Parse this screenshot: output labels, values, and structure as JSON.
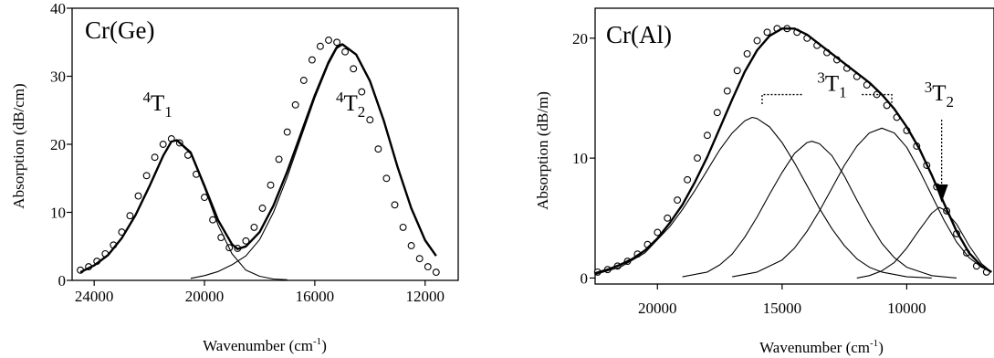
{
  "chart_data": [
    {
      "type": "line",
      "title": "",
      "panel_label": "Cr(Ge)",
      "xlabel": "Wavenumber (cm",
      "xlabel_sup": "-1",
      "xlabel_tail": ")",
      "ylabel": "Absorption (dB/cm)",
      "xlim": [
        24800,
        10800
      ],
      "ylim": [
        0,
        40
      ],
      "x_reversed": true,
      "xticks": [
        24000,
        20000,
        16000,
        12000
      ],
      "yticks": [
        0,
        10,
        20,
        30,
        40
      ],
      "grid": false,
      "annotations": [
        {
          "text": "4",
          "sub": "1",
          "base": "T",
          "x": 21700,
          "y": 25
        },
        {
          "text": "4",
          "sub": "2",
          "base": "T",
          "x": 14700,
          "y": 25
        }
      ],
      "series": [
        {
          "style": "markers",
          "x": [
            24500,
            24200,
            23900,
            23600,
            23300,
            23000,
            22700,
            22400,
            22100,
            21800,
            21500,
            21200,
            20900,
            20600,
            20300,
            20000,
            19700,
            19400,
            19100,
            18800,
            18500,
            18200,
            17900,
            17600,
            17300,
            17000,
            16700,
            16400,
            16100,
            15800,
            15500,
            15200,
            14900,
            14600,
            14300,
            14000,
            13700,
            13400,
            13100,
            12800,
            12500,
            12200,
            11900,
            11600
          ],
          "y": [
            1.5,
            2.0,
            2.8,
            3.9,
            5.2,
            7.1,
            9.5,
            12.4,
            15.4,
            18.1,
            20.0,
            20.8,
            20.2,
            18.4,
            15.6,
            12.2,
            8.9,
            6.3,
            4.8,
            4.7,
            5.8,
            7.8,
            10.6,
            14.0,
            17.8,
            21.8,
            25.8,
            29.4,
            32.4,
            34.4,
            35.3,
            35.0,
            33.6,
            31.1,
            27.7,
            23.6,
            19.3,
            15.0,
            11.1,
            7.8,
            5.1,
            3.2,
            2.0,
            1.2
          ]
        },
        {
          "style": "fit",
          "x": [
            24500,
            24000,
            23500,
            23000,
            22500,
            22000,
            21500,
            21200,
            21000,
            20500,
            20000,
            19500,
            19000,
            18800,
            18500,
            18000,
            17500,
            17000,
            16500,
            16000,
            15500,
            15200,
            15000,
            14500,
            14000,
            13500,
            13000,
            12500,
            12000,
            11600
          ],
          "y": [
            1.2,
            2.2,
            3.7,
            6.2,
            9.6,
            13.8,
            18.3,
            20.4,
            20.6,
            18.8,
            13.9,
            8.8,
            5.3,
            4.6,
            5.0,
            7.1,
            11.0,
            16.0,
            21.6,
            27.2,
            32.1,
            34.3,
            34.7,
            33.2,
            29.3,
            23.5,
            16.7,
            10.6,
            5.9,
            3.6
          ]
        },
        {
          "style": "component",
          "x": [
            24500,
            24000,
            23500,
            23000,
            22500,
            22000,
            21500,
            21200,
            21000,
            20500,
            20000,
            19500,
            19000,
            18500,
            18000,
            17500,
            17000
          ],
          "y": [
            1.2,
            2.2,
            3.7,
            6.2,
            9.6,
            13.8,
            18.3,
            20.4,
            20.5,
            18.6,
            13.6,
            8.1,
            3.9,
            1.5,
            0.6,
            0.2,
            0.1
          ]
        },
        {
          "style": "component",
          "x": [
            20500,
            20000,
            19500,
            19000,
            18500,
            18000,
            17500,
            17000,
            16500,
            16000,
            15500,
            15200,
            15000,
            14500,
            14000,
            13500,
            13000,
            12500,
            12000,
            11600
          ],
          "y": [
            0.3,
            0.7,
            1.3,
            2.3,
            3.6,
            6.0,
            10.0,
            15.2,
            21.0,
            26.8,
            31.8,
            34.1,
            34.6,
            33.1,
            29.2,
            23.4,
            16.6,
            10.5,
            5.8,
            3.6
          ]
        }
      ]
    },
    {
      "type": "line",
      "title": "",
      "panel_label": "Cr(Al)",
      "xlabel": "Wavenumber (cm",
      "xlabel_sup": "-1",
      "xlabel_tail": ")",
      "ylabel": "Absorption (dB/m)",
      "xlim": [
        22500,
        6500
      ],
      "ylim": [
        -0.5,
        22.5
      ],
      "x_reversed": true,
      "xticks": [
        20000,
        15000,
        10000
      ],
      "yticks": [
        0,
        10,
        20
      ],
      "grid": false,
      "annotations": [
        {
          "text": "3",
          "sub": "1",
          "base": "T",
          "x": 13000,
          "y": 15.6
        },
        {
          "text": "3",
          "sub": "2",
          "base": "T",
          "x": 8700,
          "y": 14.8
        }
      ],
      "series": [
        {
          "style": "markers",
          "x": [
            22400,
            22000,
            21600,
            21200,
            20800,
            20400,
            20000,
            19600,
            19200,
            18800,
            18400,
            18000,
            17600,
            17200,
            16800,
            16400,
            16000,
            15600,
            15200,
            14800,
            14400,
            14000,
            13600,
            13200,
            12800,
            12400,
            12000,
            11600,
            11200,
            10800,
            10400,
            10000,
            9600,
            9200,
            8800,
            8400,
            8000,
            7600,
            7200,
            6800
          ],
          "y": [
            0.5,
            0.7,
            1.0,
            1.4,
            2.0,
            2.8,
            3.8,
            5.0,
            6.5,
            8.2,
            10.0,
            11.9,
            13.8,
            15.6,
            17.3,
            18.7,
            19.8,
            20.5,
            20.8,
            20.8,
            20.5,
            20.0,
            19.4,
            18.8,
            18.2,
            17.5,
            16.8,
            16.1,
            15.3,
            14.4,
            13.4,
            12.3,
            11.0,
            9.4,
            7.6,
            5.6,
            3.7,
            2.1,
            1.0,
            0.5
          ]
        },
        {
          "style": "fit",
          "x": [
            22500,
            22000,
            21500,
            21000,
            20500,
            20000,
            19500,
            19000,
            18500,
            18000,
            17500,
            17000,
            16500,
            16000,
            15500,
            15000,
            14500,
            14000,
            13500,
            13000,
            12500,
            12000,
            11500,
            11000,
            10500,
            10000,
            9500,
            9000,
            8500,
            8000,
            7500,
            7000,
            6600
          ],
          "y": [
            0.4,
            0.7,
            1.1,
            1.6,
            2.3,
            3.3,
            4.6,
            6.1,
            8.0,
            10.1,
            12.5,
            14.9,
            17.2,
            19.0,
            20.2,
            20.8,
            20.8,
            20.3,
            19.5,
            18.7,
            17.9,
            17.1,
            16.3,
            15.3,
            14.1,
            12.6,
            10.8,
            8.6,
            6.2,
            3.9,
            2.1,
            1.0,
            0.5
          ]
        },
        {
          "style": "component",
          "x": [
            22500,
            21500,
            20500,
            19500,
            19000,
            18500,
            18000,
            17500,
            17000,
            16500,
            16200,
            16000,
            15500,
            15000,
            14500,
            14000,
            13500,
            13000,
            12500,
            12000,
            11500,
            11000,
            10000,
            9000
          ],
          "y": [
            0.3,
            0.9,
            2.1,
            4.3,
            5.7,
            7.3,
            9.0,
            10.7,
            12.1,
            13.1,
            13.4,
            13.3,
            12.6,
            11.3,
            9.6,
            7.7,
            5.8,
            4.1,
            2.7,
            1.6,
            0.9,
            0.5,
            0.1,
            0.0
          ]
        },
        {
          "style": "component",
          "x": [
            19000,
            18000,
            17500,
            17000,
            16500,
            16000,
            15500,
            15000,
            14500,
            14000,
            13800,
            13500,
            13000,
            12500,
            12000,
            11500,
            11000,
            10500,
            10000,
            9000,
            8000
          ],
          "y": [
            0.1,
            0.5,
            1.1,
            2.0,
            3.4,
            5.1,
            7.0,
            8.8,
            10.4,
            11.3,
            11.4,
            11.2,
            10.2,
            8.5,
            6.5,
            4.6,
            2.9,
            1.7,
            0.9,
            0.2,
            0.0
          ]
        },
        {
          "style": "component",
          "x": [
            17000,
            16000,
            15000,
            14500,
            14000,
            13500,
            13000,
            12500,
            12000,
            11500,
            11000,
            10500,
            10000,
            9500,
            9000,
            8500,
            8000,
            7500,
            7000,
            6600
          ],
          "y": [
            0.1,
            0.5,
            1.5,
            2.5,
            3.9,
            5.6,
            7.5,
            9.4,
            11.0,
            12.1,
            12.5,
            12.1,
            10.9,
            9.0,
            6.9,
            4.8,
            3.0,
            1.7,
            0.9,
            0.5
          ]
        },
        {
          "style": "component",
          "x": [
            12000,
            11500,
            11000,
            10500,
            10000,
            9500,
            9000,
            8700,
            8500,
            8000,
            7500,
            7000,
            6600
          ],
          "y": [
            0.0,
            0.2,
            0.6,
            1.3,
            2.5,
            4.0,
            5.4,
            5.9,
            5.7,
            4.5,
            2.7,
            1.2,
            0.5
          ]
        }
      ]
    }
  ]
}
